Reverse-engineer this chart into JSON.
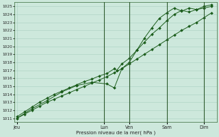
{
  "bg_color": "#cde8dc",
  "grid_color": "#a8cfc0",
  "line_color": "#1a5c1a",
  "xlabel_text": "Pression niveau de la mer( hPa )",
  "xtick_labels": [
    "Jeu",
    "Lun",
    "Ven",
    "Sam",
    "Dim"
  ],
  "xtick_positions": [
    0,
    3.5,
    4.5,
    6.0,
    7.5
  ],
  "xlim": [
    -0.1,
    8.0
  ],
  "ylim": [
    1010.5,
    1025.5
  ],
  "ytick_min": 1011,
  "ytick_max": 1025,
  "ytick_step": 1,
  "line1_x": [
    0.0,
    0.3,
    0.6,
    0.9,
    1.2,
    1.5,
    1.8,
    2.1,
    2.4,
    2.7,
    3.0,
    3.3,
    3.6,
    3.9,
    4.2,
    4.5,
    4.8,
    5.1,
    5.4,
    5.7,
    6.0,
    6.3,
    6.6,
    6.9,
    7.2,
    7.5,
    7.8
  ],
  "line1_y": [
    1011.0,
    1011.5,
    1012.0,
    1012.5,
    1013.0,
    1013.4,
    1013.8,
    1014.2,
    1014.6,
    1015.0,
    1015.4,
    1015.8,
    1016.2,
    1016.7,
    1017.2,
    1017.8,
    1018.4,
    1019.0,
    1019.6,
    1020.2,
    1020.8,
    1021.4,
    1022.0,
    1022.5,
    1023.0,
    1023.6,
    1024.2
  ],
  "line2_x": [
    0.0,
    0.3,
    0.6,
    0.9,
    1.2,
    1.5,
    1.8,
    2.1,
    2.4,
    2.7,
    3.0,
    3.3,
    3.6,
    3.9,
    4.0,
    4.2,
    4.5,
    4.8,
    5.1,
    5.4,
    5.7,
    6.0,
    6.3,
    6.6,
    6.9,
    7.2,
    7.5,
    7.8
  ],
  "line2_y": [
    1011.2,
    1011.8,
    1012.4,
    1013.0,
    1013.5,
    1014.0,
    1014.4,
    1014.8,
    1015.2,
    1015.6,
    1015.9,
    1016.3,
    1016.6,
    1017.2,
    1017.0,
    1017.8,
    1018.5,
    1019.5,
    1020.5,
    1021.5,
    1022.3,
    1023.2,
    1024.0,
    1024.5,
    1024.3,
    1024.6,
    1024.8,
    1025.0
  ],
  "line3_x": [
    0.0,
    0.6,
    1.2,
    1.8,
    2.4,
    3.0,
    3.6,
    3.9,
    4.2,
    4.5,
    4.8,
    5.1,
    5.4,
    5.7,
    6.0,
    6.3,
    6.6,
    6.9,
    7.2,
    7.5,
    7.8
  ],
  "line3_y": [
    1011.0,
    1012.2,
    1013.2,
    1014.3,
    1015.1,
    1015.5,
    1015.3,
    1014.8,
    1017.2,
    1018.0,
    1019.5,
    1021.0,
    1022.3,
    1023.5,
    1024.2,
    1024.8,
    1024.4,
    1024.8,
    1024.6,
    1025.0,
    1025.2
  ],
  "vline_positions": [
    3.5,
    4.5,
    6.0,
    7.5
  ],
  "figsize": [
    3.2,
    2.0
  ],
  "dpi": 100
}
